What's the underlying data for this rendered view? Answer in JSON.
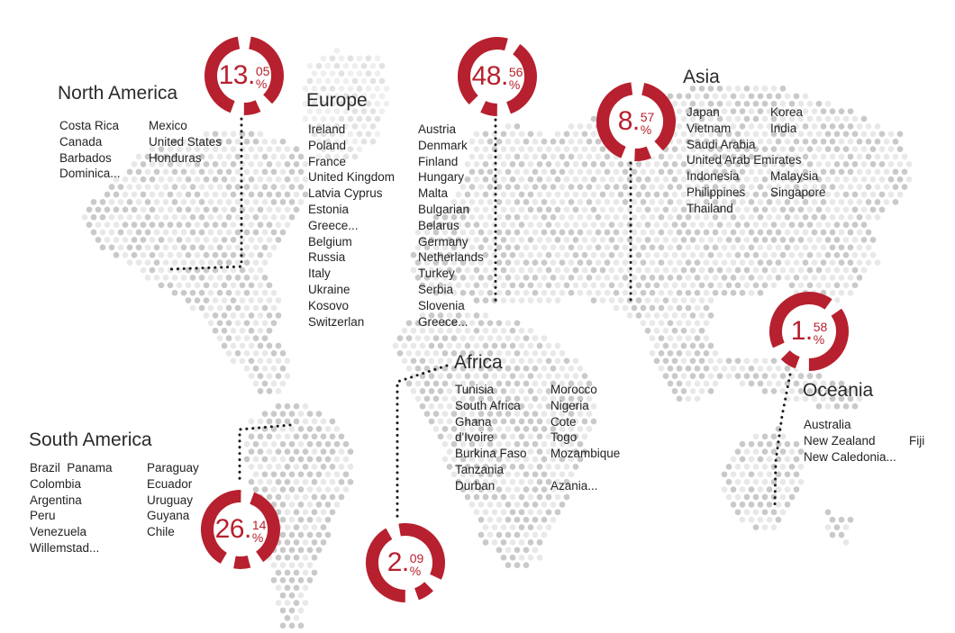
{
  "colors": {
    "accent": "#b7202e",
    "map_dot_dark": "#c9c9c9",
    "map_dot_light": "#e8e8e8",
    "map_dot_faint_dark": "#e2e2e2",
    "map_dot_faint_light": "#efefef",
    "leader_dot": "#1c1c1c"
  },
  "format": {
    "decimal_point": ".",
    "percent_sign": "%"
  },
  "chart_data": {
    "type": "pie",
    "title": "Share by continent (donut badges on dotted world map)",
    "categories": [
      "North America",
      "Europe",
      "Asia",
      "Africa",
      "South America",
      "Oceania"
    ],
    "values": [
      13.05,
      48.56,
      8.57,
      2.09,
      26.14,
      1.58
    ],
    "unit": "%",
    "legend_position": "none"
  },
  "regions": [
    {
      "id": "north-america",
      "title": "North America",
      "percent_int": "13",
      "percent_dec": "05",
      "percent": 13.05,
      "columns": [
        [
          "Costa Rica",
          "Canada",
          "Barbados",
          "Dominica..."
        ],
        [
          "Mexico",
          "United States",
          "Honduras"
        ]
      ]
    },
    {
      "id": "europe",
      "title": "Europe",
      "percent_int": "48",
      "percent_dec": "56",
      "percent": 48.56,
      "columns": [
        [
          "Ireland",
          "Poland",
          "France",
          "United Kingdom",
          "Latvia Cyprus",
          "Estonia",
          "Greece...",
          "Belgium",
          "Russia",
          "Italy",
          "Ukraine",
          "Kosovo",
          "Switzerlan"
        ],
        [
          "Austria",
          "Denmark",
          "Finland",
          "Hungary",
          "Malta",
          "Bulgarian",
          "Belarus",
          "Germany",
          "Netherlands",
          "Turkey",
          "Serbia",
          "Slovenia",
          "Greece..."
        ]
      ]
    },
    {
      "id": "asia",
      "title": "Asia",
      "percent_int": "8",
      "percent_dec": "57",
      "percent": 8.57,
      "columns": [
        [
          "Japan",
          "Vietnam",
          "Saudi Arabia",
          "United Arab Emirates",
          "Indonesia",
          "Philippines",
          "Thailand"
        ],
        [
          "Korea",
          "India",
          "",
          "",
          "Malaysia",
          "Singapore"
        ]
      ]
    },
    {
      "id": "africa",
      "title": "Africa",
      "percent_int": "2",
      "percent_dec": "09",
      "percent": 2.09,
      "columns": [
        [
          "Tunisia",
          "South Africa",
          "Ghana",
          "d'Ivoire",
          "Burkina Faso",
          "Tanzania",
          "Durban"
        ],
        [
          "Morocco",
          "Nigeria",
          "Cote",
          "Togo",
          "Mozambique",
          "",
          "Azania..."
        ]
      ]
    },
    {
      "id": "south-america",
      "title": "South America",
      "percent_int": "26",
      "percent_dec": "14",
      "percent": 26.14,
      "columns": [
        [
          "Brazil  Panama",
          "Colombia",
          "Argentina",
          "Peru",
          "Venezuela",
          "Willemstad..."
        ],
        [
          "Paraguay",
          "Ecuador",
          "Uruguay",
          "Guyana",
          "Chile"
        ]
      ]
    },
    {
      "id": "oceania",
      "title": "Oceania",
      "percent_int": "1",
      "percent_dec": "58",
      "percent": 1.58,
      "columns": [
        [
          "Australia",
          "New Zealand",
          "New Caledonia..."
        ],
        [
          "",
          "Fiji",
          ""
        ]
      ]
    }
  ]
}
